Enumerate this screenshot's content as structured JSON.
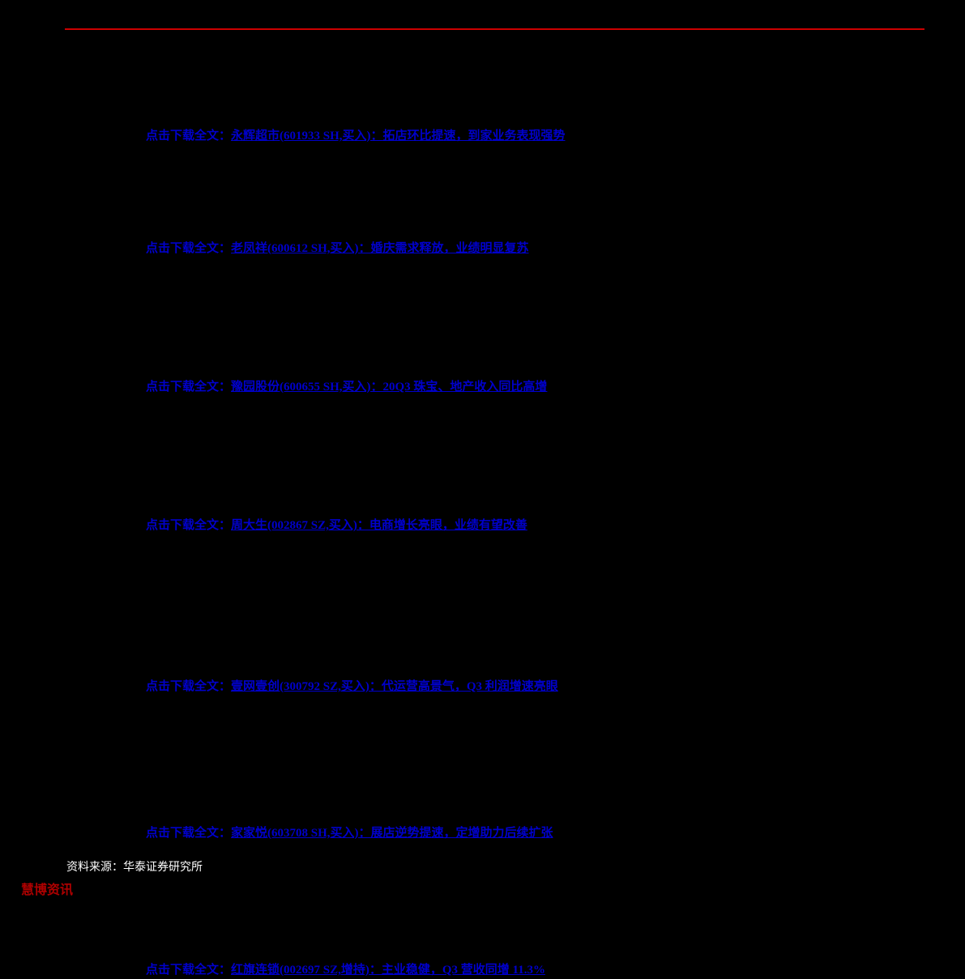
{
  "styling": {
    "background_color": "#000000",
    "rule_color": "#cc0000",
    "link_color": "#0000cc",
    "source_color": "#ffffff",
    "watermark_color": "#cc0000",
    "link_font_size": 15,
    "link_font_weight": "bold",
    "source_font_size": 14
  },
  "link_prefix": "点击下载全文：",
  "links": [
    {
      "text": "永辉超市(601933 SH,买入)：拓店环比提速，到家业务表现强势"
    },
    {
      "text": "老凤祥(600612 SH,买入)：婚庆需求释放，业绩明显复苏"
    },
    {
      "text": "豫园股份(600655 SH,买入)：20Q3 珠宝、地产收入同比高增"
    },
    {
      "text": "周大生(002867 SZ,买入)：电商增长亮眼，业绩有望改善"
    },
    {
      "text": "壹网壹创(300792 SZ,买入)：代运营高景气，Q3 利润增速亮眼"
    },
    {
      "text": "家家悦(603708 SH,买入)：展店逆势提速，定增助力后续扩张"
    },
    {
      "text": "红旗连锁(002697 SZ,增持)：主业稳健，Q3 营收同增 11.3%"
    }
  ],
  "source": "资料来源：华泰证券研究所",
  "watermark": "慧博资讯"
}
